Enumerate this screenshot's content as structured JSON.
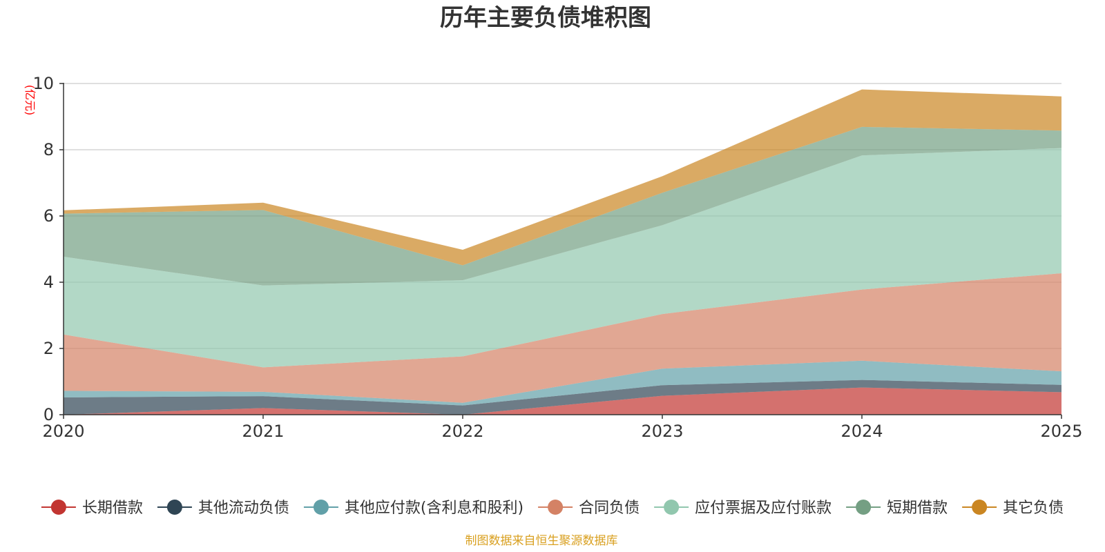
{
  "chart_data": {
    "type": "area",
    "stacked": true,
    "title": "历年主要负债堆积图",
    "unit_label": "(亿元)",
    "x": [
      "2020",
      "2021",
      "2022",
      "2023",
      "2024",
      "2025"
    ],
    "ylim": [
      0,
      10
    ],
    "yticks": [
      0,
      2,
      4,
      6,
      8,
      10
    ],
    "grid": true,
    "legend_position": "bottom",
    "series": [
      {
        "name": "长期借款",
        "values": [
          0.0,
          0.2,
          0.0,
          0.57,
          0.82,
          0.68
        ],
        "color": "#c23531"
      },
      {
        "name": "其他流动负债",
        "values": [
          0.52,
          0.36,
          0.28,
          0.32,
          0.23,
          0.22
        ],
        "color": "#2f4554"
      },
      {
        "name": "其他应付款(含利息和股利)",
        "values": [
          0.2,
          0.13,
          0.08,
          0.5,
          0.58,
          0.41
        ],
        "color": "#61a0a8"
      },
      {
        "name": "合同负债",
        "values": [
          1.7,
          0.74,
          1.4,
          1.65,
          2.15,
          2.96
        ],
        "color": "#d48265"
      },
      {
        "name": "应付票据及应付账款",
        "values": [
          2.35,
          2.47,
          2.3,
          2.68,
          4.05,
          3.78
        ],
        "color": "#91c7ae"
      },
      {
        "name": "短期借款",
        "values": [
          1.3,
          2.28,
          0.45,
          0.98,
          0.86,
          0.53
        ],
        "color": "#749f83"
      },
      {
        "name": "其它负债",
        "values": [
          0.1,
          0.22,
          0.47,
          0.5,
          1.13,
          1.03
        ],
        "color": "#ca8622"
      }
    ]
  },
  "footer": {
    "source": "制图数据来自恒生聚源数据库"
  },
  "colors": {
    "unit_label": "#ff0000",
    "source": "#d9a020",
    "axis": "#333333",
    "grid": "#cccccc"
  }
}
